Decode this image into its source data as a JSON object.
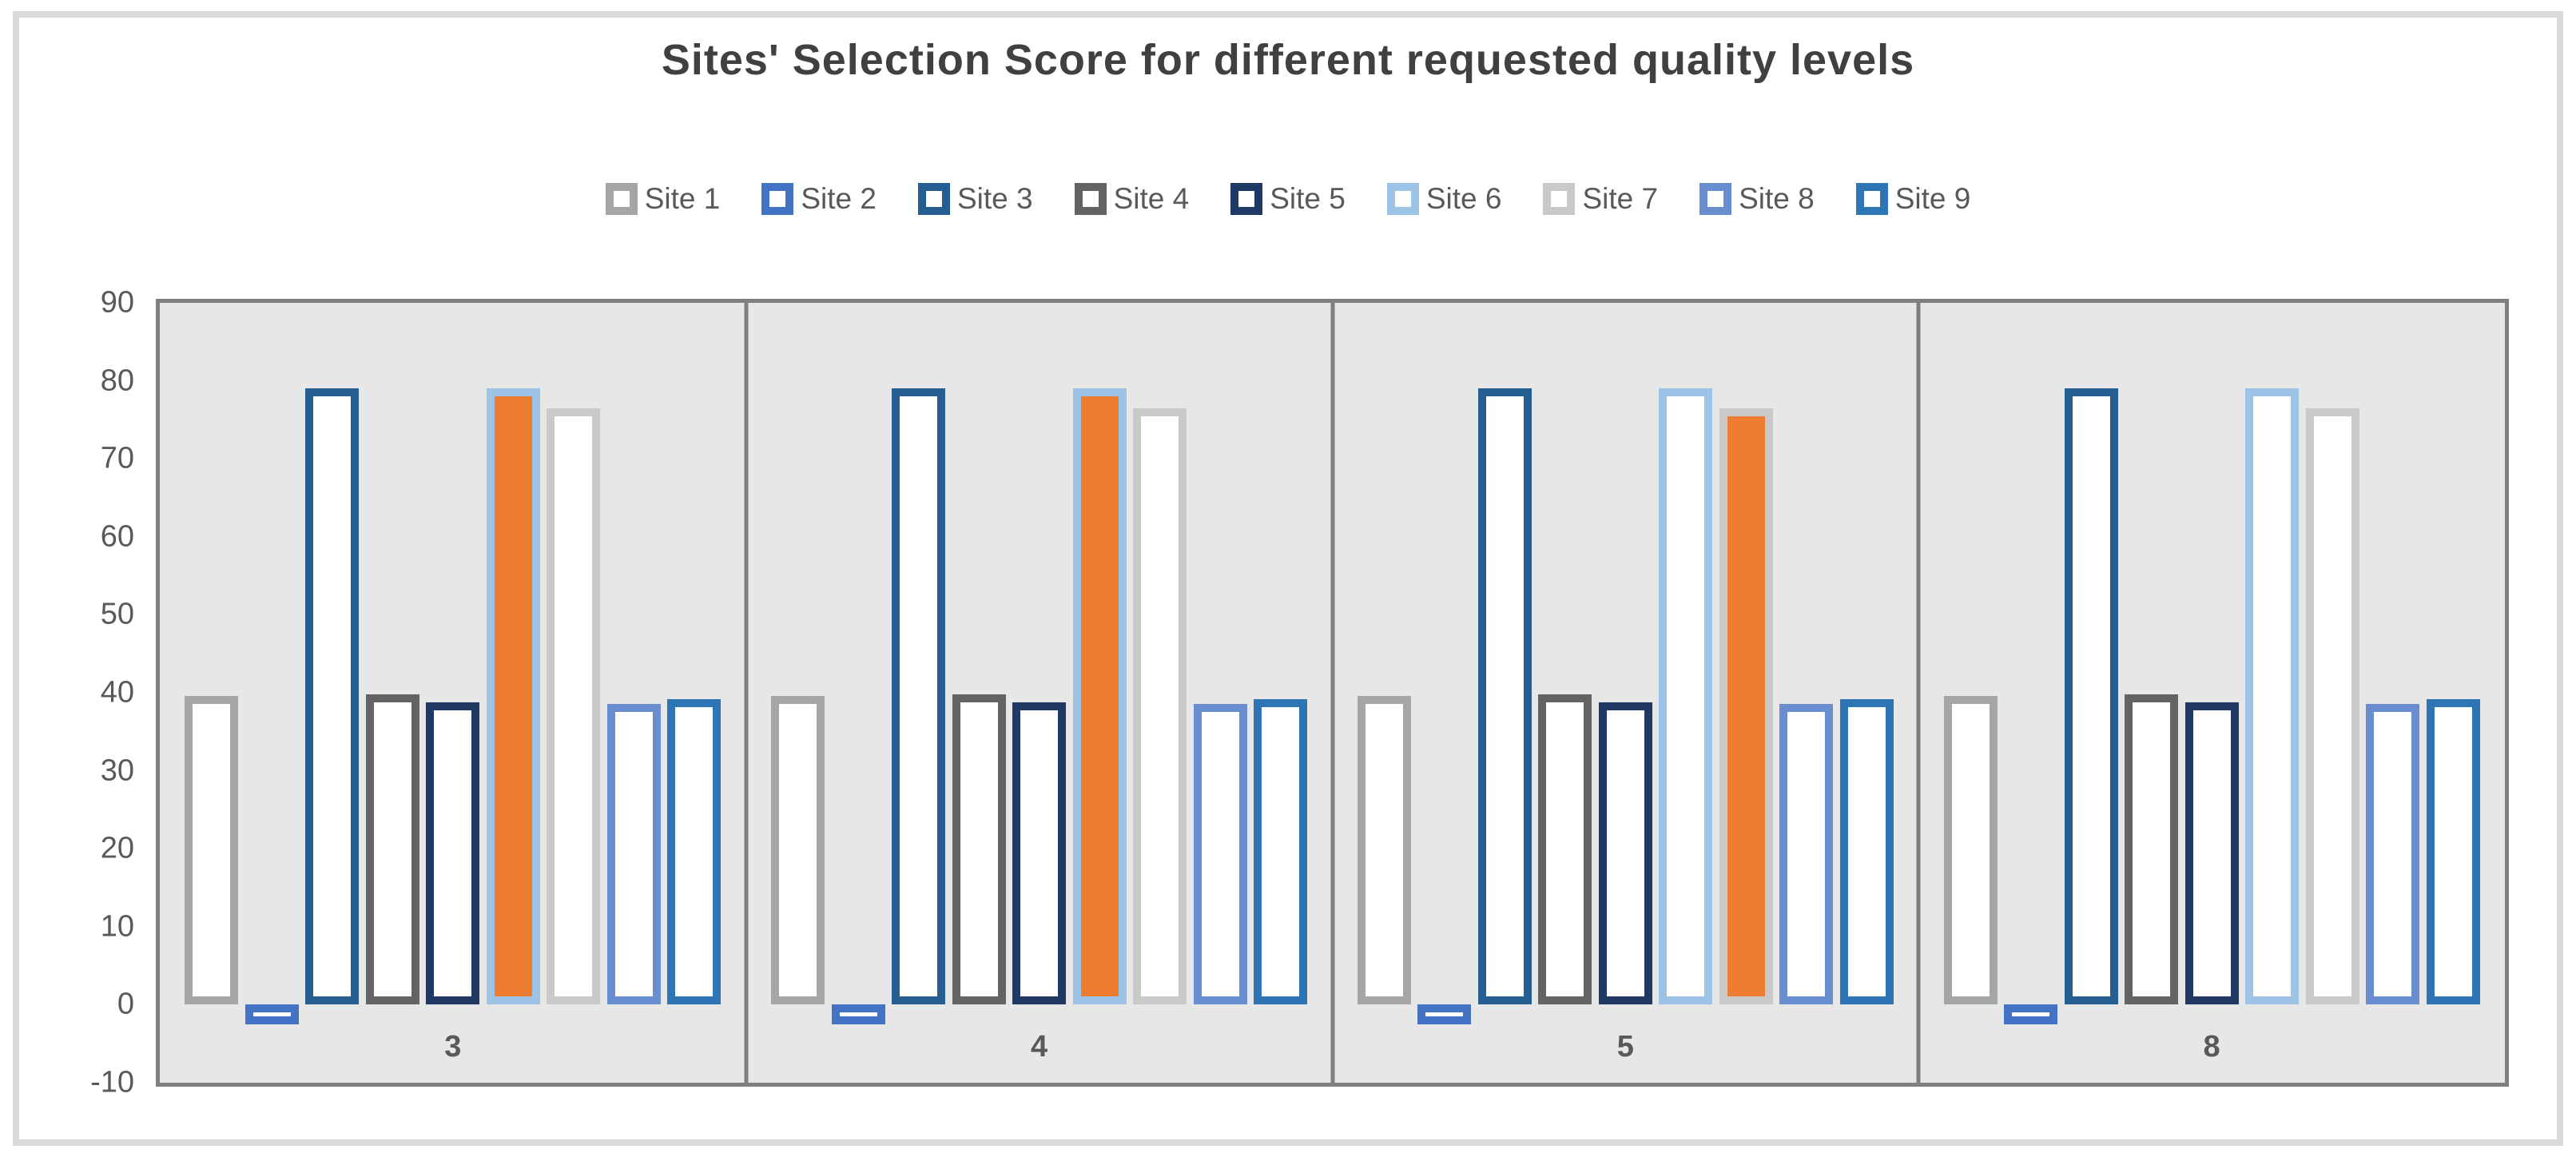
{
  "chart_data": {
    "type": "bar",
    "title": "Sites' Selection Score for different requested quality levels",
    "categories": [
      "3",
      "4",
      "5",
      "8"
    ],
    "x_meaning": "requested quality level",
    "series": [
      {
        "name": "Site 1",
        "color": "#a6a6a6",
        "values": [
          39.6,
          39.6,
          39.6,
          39.6
        ]
      },
      {
        "name": "Site 2",
        "color": "#4472c4",
        "values": [
          -2.5,
          -2.5,
          -2.5,
          -2.5
        ]
      },
      {
        "name": "Site 3",
        "color": "#255e91",
        "values": [
          79,
          79,
          79,
          79
        ]
      },
      {
        "name": "Site 4",
        "color": "#636363",
        "values": [
          39.8,
          39.8,
          39.8,
          39.8
        ]
      },
      {
        "name": "Site 5",
        "color": "#1f3864",
        "values": [
          38.8,
          38.8,
          38.8,
          38.8
        ]
      },
      {
        "name": "Site 6",
        "color": "#9dc3e6",
        "values": [
          79,
          79,
          79,
          79
        ]
      },
      {
        "name": "Site 7",
        "color": "#c9c9c9",
        "values": [
          76.5,
          76.5,
          76.5,
          76.5
        ]
      },
      {
        "name": "Site 8",
        "color": "#698ed0",
        "values": [
          38.6,
          38.6,
          38.6,
          38.6
        ]
      },
      {
        "name": "Site 9",
        "color": "#2e75b6",
        "values": [
          39.2,
          39.2,
          39.2,
          39.2
        ]
      }
    ],
    "bar_style": "hollow outlined bars with white fill; selected bar filled orange",
    "highlighted_bars": [
      {
        "category": "3",
        "series": "Site 6"
      },
      {
        "category": "4",
        "series": "Site 6"
      },
      {
        "category": "5",
        "series": "Site 7"
      }
    ],
    "highlight_fill": "#ed7d31",
    "ylim": [
      -10,
      90
    ],
    "yticks": [
      90,
      80,
      70,
      60,
      50,
      40,
      30,
      20,
      10,
      0,
      -10
    ],
    "legend_position": "top",
    "grid": false,
    "plot_background": "#e7e7e7",
    "plot_border_color": "#7f7f7f",
    "axis_text_color": "#595959",
    "title_color": "#404040",
    "frame_color": "#d9d9d9"
  }
}
